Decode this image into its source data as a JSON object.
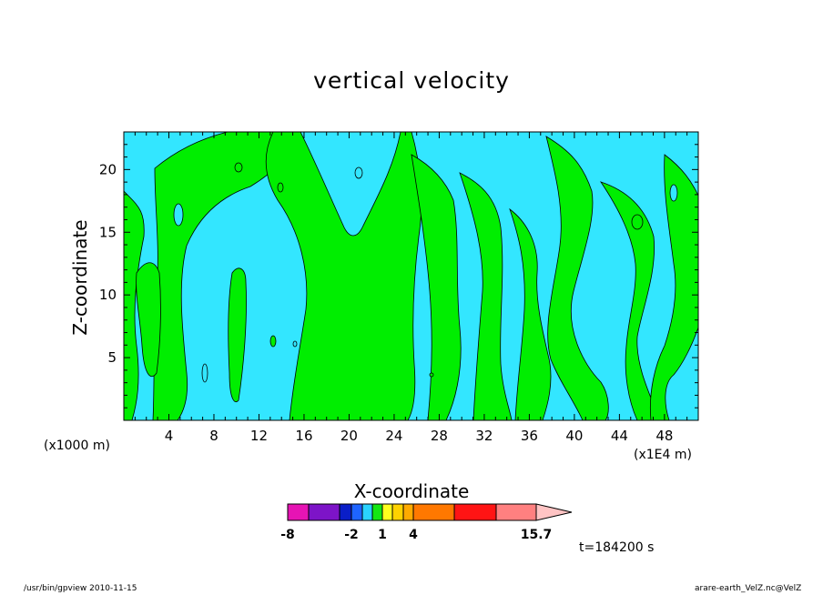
{
  "chart_data": {
    "type": "heatmap",
    "title": "vertical velocity",
    "xlabel": "X-coordinate",
    "ylabel": "Z-coordinate",
    "x_unit_label": "(x1E4 m)",
    "y_unit_label": "(x1000 m)",
    "xlim": [
      0,
      51
    ],
    "ylim": [
      0,
      23
    ],
    "x_ticks": [
      4,
      8,
      12,
      16,
      20,
      24,
      28,
      32,
      36,
      40,
      44,
      48
    ],
    "y_ticks": [
      5,
      10,
      15,
      20
    ],
    "colors": {
      "negative": "#33e6ff",
      "positive": "#00ee00",
      "contour_line": "#000000"
    },
    "colorbar": {
      "colors": [
        "#e614b4",
        "#7d14c8",
        "#0a1ec8",
        "#1e64ff",
        "#2ad2ff",
        "#14e614",
        "#ffff1e",
        "#ffd200",
        "#ffaa00",
        "#ff7800",
        "#ff1414",
        "#ff8080",
        "#ffc4c4"
      ],
      "tick_labels": [
        "-8",
        "-2",
        "1",
        "4",
        "15.7"
      ]
    },
    "time_label": "t=184200 s"
  },
  "footer": {
    "left": "/usr/bin/gpview   2010-11-15",
    "right": "arare-earth_VelZ.nc@VelZ"
  }
}
